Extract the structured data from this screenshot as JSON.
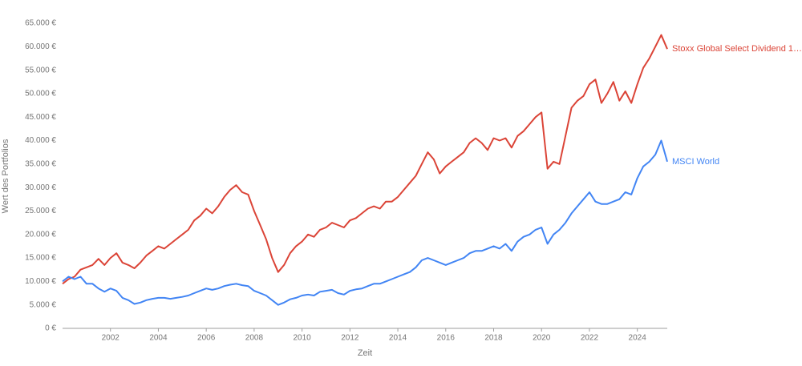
{
  "chart_data": {
    "type": "line",
    "y_axis_label": "Wert des Portfolios",
    "x_axis_label": "Zeit",
    "x": [
      2000.0,
      2000.25,
      2000.5,
      2000.75,
      2001.0,
      2001.25,
      2001.5,
      2001.75,
      2002.0,
      2002.25,
      2002.5,
      2002.75,
      2003.0,
      2003.25,
      2003.5,
      2003.75,
      2004.0,
      2004.25,
      2004.5,
      2004.75,
      2005.0,
      2005.25,
      2005.5,
      2005.75,
      2006.0,
      2006.25,
      2006.5,
      2006.75,
      2007.0,
      2007.25,
      2007.5,
      2007.75,
      2008.0,
      2008.25,
      2008.5,
      2008.75,
      2009.0,
      2009.25,
      2009.5,
      2009.75,
      2010.0,
      2010.25,
      2010.5,
      2010.75,
      2011.0,
      2011.25,
      2011.5,
      2011.75,
      2012.0,
      2012.25,
      2012.5,
      2012.75,
      2013.0,
      2013.25,
      2013.5,
      2013.75,
      2014.0,
      2014.25,
      2014.5,
      2014.75,
      2015.0,
      2015.25,
      2015.5,
      2015.75,
      2016.0,
      2016.25,
      2016.5,
      2016.75,
      2017.0,
      2017.25,
      2017.5,
      2017.75,
      2018.0,
      2018.25,
      2018.5,
      2018.75,
      2019.0,
      2019.25,
      2019.5,
      2019.75,
      2020.0,
      2020.25,
      2020.5,
      2020.75,
      2021.0,
      2021.25,
      2021.5,
      2021.75,
      2022.0,
      2022.25,
      2022.5,
      2022.75,
      2023.0,
      2023.25,
      2023.5,
      2023.75,
      2024.0,
      2024.25,
      2024.5,
      2024.75,
      2025.0,
      2025.25
    ],
    "series": [
      {
        "name": "Stoxx Global Select Dividend 1…",
        "color": "#db4437",
        "values": [
          9500,
          10500,
          11000,
          12500,
          13000,
          13500,
          14800,
          13500,
          15000,
          16000,
          14000,
          13500,
          12800,
          14000,
          15500,
          16500,
          17500,
          17000,
          18000,
          19000,
          20000,
          21000,
          23000,
          24000,
          25500,
          24500,
          26000,
          28000,
          29500,
          30500,
          29000,
          28500,
          25000,
          22000,
          19000,
          15000,
          12000,
          13500,
          16000,
          17500,
          18500,
          20000,
          19500,
          21000,
          21500,
          22500,
          22000,
          21500,
          23000,
          23500,
          24500,
          25500,
          26000,
          25500,
          27000,
          27000,
          28000,
          29500,
          31000,
          32500,
          35000,
          37500,
          36000,
          33000,
          34500,
          35500,
          36500,
          37500,
          39500,
          40500,
          39500,
          38000,
          40500,
          40000,
          40500,
          38500,
          41000,
          42000,
          43500,
          45000,
          46000,
          34000,
          35500,
          35000,
          41000,
          47000,
          48500,
          49500,
          52000,
          53000,
          48000,
          50000,
          52500,
          48500,
          50500,
          48000,
          52000,
          55500,
          57500,
          60000,
          62500,
          59500
        ]
      },
      {
        "name": "MSCI World",
        "color": "#4285f4",
        "values": [
          10000,
          11000,
          10500,
          11000,
          9500,
          9500,
          8500,
          7800,
          8500,
          8000,
          6500,
          6000,
          5200,
          5500,
          6000,
          6300,
          6500,
          6500,
          6300,
          6500,
          6700,
          7000,
          7500,
          8000,
          8500,
          8200,
          8500,
          9000,
          9300,
          9500,
          9200,
          9000,
          8000,
          7500,
          7000,
          6000,
          5000,
          5500,
          6200,
          6500,
          7000,
          7200,
          7000,
          7800,
          8000,
          8200,
          7500,
          7200,
          8000,
          8300,
          8500,
          9000,
          9500,
          9500,
          10000,
          10500,
          11000,
          11500,
          12000,
          13000,
          14500,
          15000,
          14500,
          14000,
          13500,
          14000,
          14500,
          15000,
          16000,
          16500,
          16500,
          17000,
          17500,
          17000,
          18000,
          16500,
          18500,
          19500,
          20000,
          21000,
          21500,
          18000,
          20000,
          21000,
          22500,
          24500,
          26000,
          27500,
          29000,
          27000,
          26500,
          26500,
          27000,
          27500,
          29000,
          28500,
          32000,
          34500,
          35500,
          37000,
          40000,
          35500
        ]
      }
    ],
    "xlim": [
      2000,
      2025.25
    ],
    "xticks": [
      2002,
      2004,
      2006,
      2008,
      2010,
      2012,
      2014,
      2016,
      2018,
      2020,
      2022,
      2024
    ],
    "ylim": [
      0,
      65000
    ],
    "yticks": [
      {
        "value": 0,
        "label": "0 €"
      },
      {
        "value": 5000,
        "label": "5.000 €"
      },
      {
        "value": 10000,
        "label": "10.000 €"
      },
      {
        "value": 15000,
        "label": "15.000 €"
      },
      {
        "value": 20000,
        "label": "20.000 €"
      },
      {
        "value": 25000,
        "label": "25.000 €"
      },
      {
        "value": 30000,
        "label": "30.000 €"
      },
      {
        "value": 35000,
        "label": "35.000 €"
      },
      {
        "value": 40000,
        "label": "40.000 €"
      },
      {
        "value": 45000,
        "label": "45.000 €"
      },
      {
        "value": 50000,
        "label": "50.000 €"
      },
      {
        "value": 55000,
        "label": "55.000 €"
      },
      {
        "value": 60000,
        "label": "60.000 €"
      },
      {
        "value": 65000,
        "label": "65.000 €"
      }
    ],
    "grid": false
  }
}
